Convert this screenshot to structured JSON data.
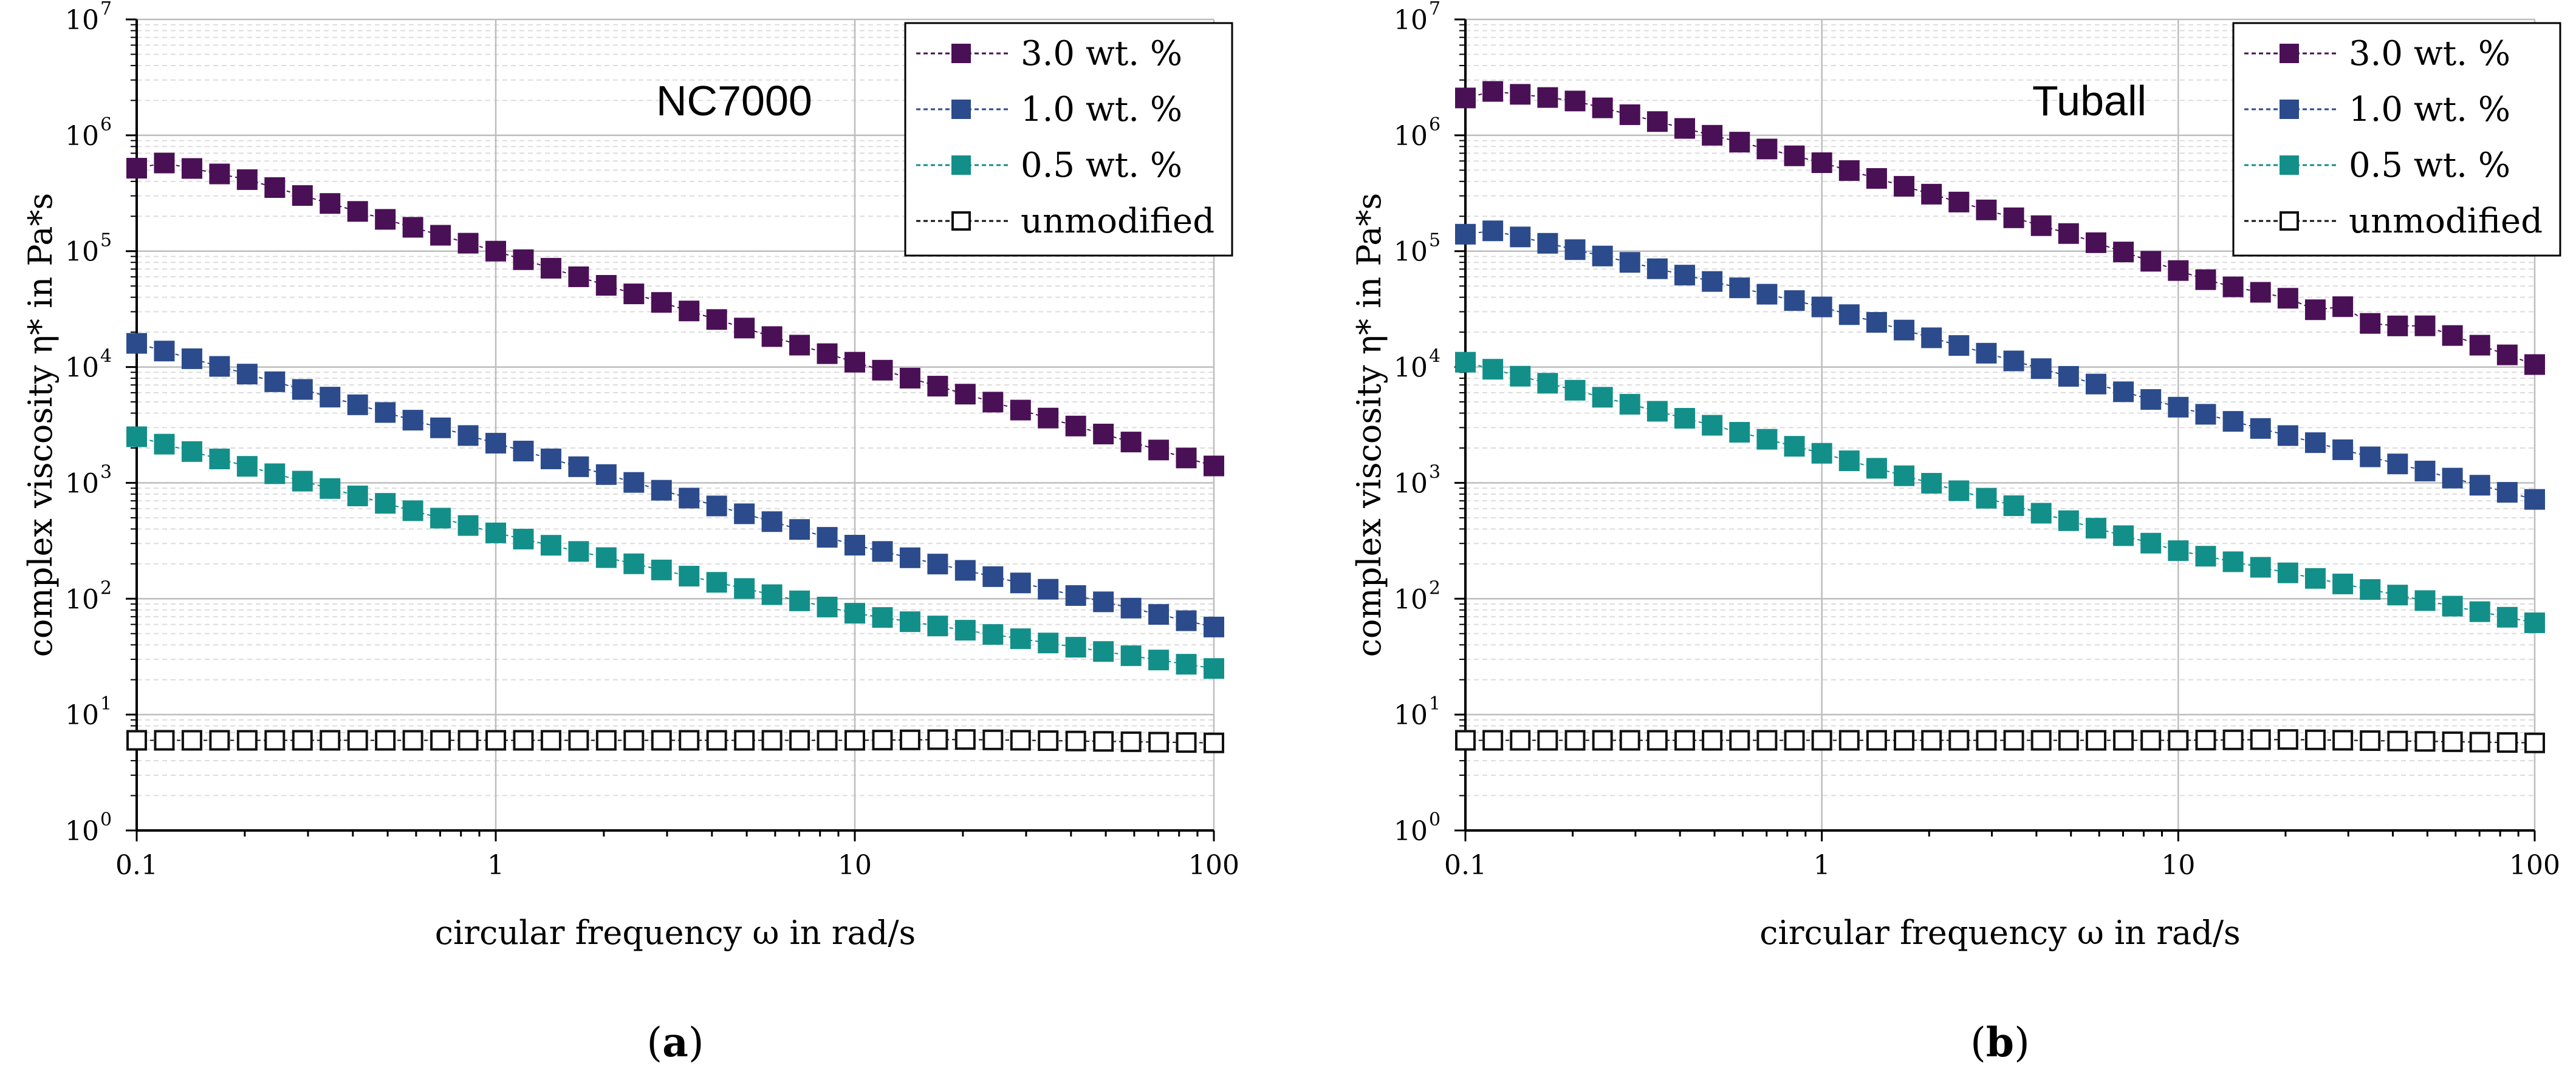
{
  "colors": {
    "s30": "#4a1056",
    "s10": "#2b4b8c",
    "s05": "#138f8a",
    "unmod": "#111111"
  },
  "chart_data": [
    {
      "type": "scatter",
      "panel": "(a)",
      "panel_letter": "a",
      "title": "NC7000",
      "xlabel": "circular frequency ω in rad/s",
      "ylabel": "complex viscosity η* in Pa*s",
      "xscale": "log",
      "yscale": "log",
      "xlim": [
        0.1,
        100
      ],
      "ylim": [
        1,
        10000000
      ],
      "xticks": [
        "0.1",
        "1",
        "10",
        "100"
      ],
      "yticks": [
        "10^0",
        "10^1",
        "10^2",
        "10^3",
        "10^4",
        "10^5",
        "10^6",
        "10^7"
      ],
      "legend_position": "top-right",
      "series": [
        {
          "name": "3.0 wt. %",
          "key": "s30",
          "marker": "filled-square",
          "points": [
            [
              0.1,
              520000
            ],
            [
              0.115,
              590000
            ],
            [
              0.2,
              420000
            ],
            [
              1,
              100000
            ],
            [
              10,
              11000
            ],
            [
              100,
              1400
            ]
          ]
        },
        {
          "name": "1.0 wt. %",
          "key": "s10",
          "marker": "filled-square",
          "points": [
            [
              0.1,
              16000
            ],
            [
              1,
              2200
            ],
            [
              10,
              290
            ],
            [
              100,
              57
            ]
          ]
        },
        {
          "name": "0.5 wt. %",
          "key": "s05",
          "marker": "filled-square",
          "points": [
            [
              0.1,
              2500
            ],
            [
              1,
              370
            ],
            [
              10,
              75
            ],
            [
              100,
              25
            ]
          ]
        },
        {
          "name": "unmodified",
          "key": "unmod",
          "marker": "open-square",
          "points": [
            [
              0.1,
              6
            ],
            [
              1,
              6
            ],
            [
              10,
              6
            ],
            [
              20,
              6.1
            ],
            [
              100,
              5.7
            ]
          ]
        }
      ]
    },
    {
      "type": "scatter",
      "panel": "(b)",
      "panel_letter": "b",
      "title": "Tuball",
      "xlabel": "circular frequency ω in rad/s",
      "ylabel": "complex viscosity η* in Pa*s",
      "xscale": "log",
      "yscale": "log",
      "xlim": [
        0.1,
        100
      ],
      "ylim": [
        1,
        10000000
      ],
      "xticks": [
        "0.1",
        "1",
        "10",
        "100"
      ],
      "yticks": [
        "10^0",
        "10^1",
        "10^2",
        "10^3",
        "10^4",
        "10^5",
        "10^6",
        "10^7"
      ],
      "legend_position": "top-right",
      "series": [
        {
          "name": "3.0 wt. %",
          "key": "s30",
          "marker": "filled-square",
          "points": [
            [
              0.1,
              2100000
            ],
            [
              0.12,
              2400000
            ],
            [
              0.2,
              2000000
            ],
            [
              1,
              580000
            ],
            [
              5,
              140000
            ],
            [
              10,
              68000
            ],
            [
              13,
              52000
            ],
            [
              20,
              40000
            ],
            [
              25,
              30000
            ],
            [
              30,
              34000
            ],
            [
              37,
              20000
            ],
            [
              45,
              25000
            ],
            [
              100,
              10500
            ]
          ]
        },
        {
          "name": "1.0 wt. %",
          "key": "s10",
          "marker": "filled-square",
          "points": [
            [
              0.1,
              140000
            ],
            [
              0.12,
              150000
            ],
            [
              1,
              33000
            ],
            [
              10,
              4500
            ],
            [
              100,
              720
            ]
          ]
        },
        {
          "name": "0.5 wt. %",
          "key": "s05",
          "marker": "filled-square",
          "points": [
            [
              0.1,
              11000
            ],
            [
              1,
              1800
            ],
            [
              10,
              260
            ],
            [
              100,
              62
            ]
          ]
        },
        {
          "name": "unmodified",
          "key": "unmod",
          "marker": "open-square",
          "points": [
            [
              0.1,
              6
            ],
            [
              1,
              6
            ],
            [
              10,
              6
            ],
            [
              20,
              6.1
            ],
            [
              100,
              5.7
            ]
          ]
        }
      ]
    }
  ]
}
